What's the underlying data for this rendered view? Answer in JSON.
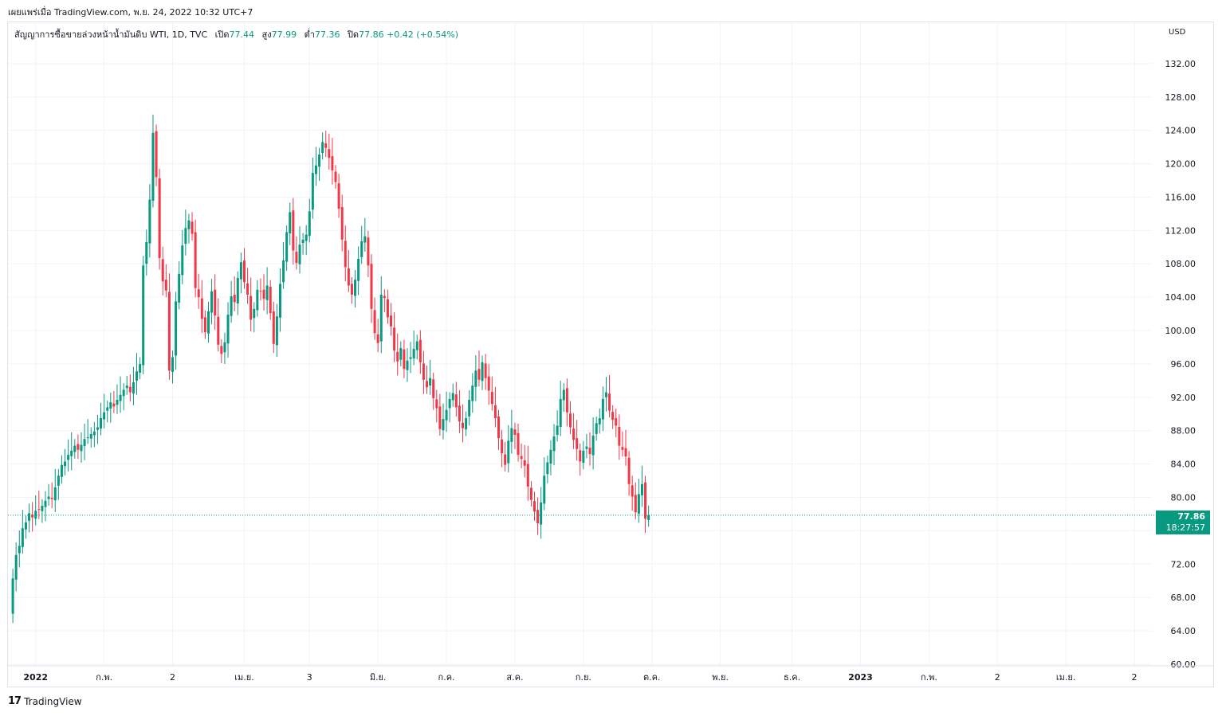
{
  "header": {
    "published": "เผยแพร่เมื่อ TradingView.com, พ.ย. 24, 2022 10:32 UTC+7"
  },
  "legend": {
    "symbol": "สัญญาการซื้อขายล่วงหน้าน้ำมันดิบ WTI, 1D, TVC",
    "open_label": "เปิด",
    "open": "77.44",
    "high_label": "สูง",
    "high": "77.99",
    "low_label": "ต่ำ",
    "low": "77.36",
    "close_label": "ปิด",
    "close": "77.86",
    "change": "+0.42 (+0.54%)"
  },
  "price_axis": {
    "currency": "USD",
    "last_price": "77.86",
    "countdown": "18:27:57"
  },
  "footer": {
    "brand_mark": "17",
    "brand": "TradingView"
  },
  "colors": {
    "up": "#089981",
    "down": "#f23645",
    "grid": "#f0f3fa",
    "axis_text": "#131722"
  },
  "chart_data": {
    "type": "candlestick",
    "title": "สัญญาการซื้อขายล่วงหน้าน้ำมันดิบ WTI",
    "interval": "1D",
    "ylim": [
      60,
      134
    ],
    "y_ticks": [
      60,
      64,
      68,
      72,
      76,
      80,
      84,
      88,
      92,
      96,
      100,
      104,
      108,
      112,
      116,
      120,
      124,
      128,
      132
    ],
    "x_tick_labels": [
      "2022",
      "ก.พ.",
      "2",
      "เม.ย.",
      "3",
      "มิ.ย.",
      "ก.ค.",
      "ส.ค.",
      "ก.ย.",
      "ต.ค.",
      "พ.ย.",
      "ธ.ค.",
      "2023",
      "ก.พ.",
      "2",
      "เม.ย.",
      "2"
    ],
    "x_tick_slots": [
      8,
      29,
      50,
      72,
      92,
      113,
      134,
      155,
      176,
      197,
      218,
      240,
      261,
      282,
      303,
      324,
      345
    ],
    "last_close": 77.86,
    "grid": true,
    "closes": [
      66.2,
      70.3,
      73.1,
      74.2,
      76.3,
      77.0,
      78.1,
      77.6,
      78.4,
      78.5,
      79.0,
      79.6,
      80.1,
      79.8,
      81.2,
      82.6,
      83.9,
      84.3,
      85.1,
      85.6,
      86.2,
      85.7,
      86.3,
      87.0,
      87.2,
      87.6,
      87.9,
      88.4,
      89.5,
      90.2,
      90.8,
      91.4,
      90.9,
      91.7,
      92.3,
      92.9,
      93.4,
      92.6,
      93.8,
      95.1,
      96.0,
      107.8,
      110.6,
      115.7,
      123.7,
      118.4,
      108.7,
      105.9,
      104.8,
      95.2,
      96.8,
      103.5,
      106.8,
      110.2,
      112.3,
      113.2,
      111.6,
      105.1,
      104.0,
      101.4,
      99.8,
      102.3,
      104.7,
      101.8,
      98.3,
      97.2,
      98.6,
      101.9,
      104.1,
      103.4,
      106.3,
      108.2,
      105.8,
      104.3,
      101.3,
      102.6,
      104.9,
      104.7,
      103.8,
      105.4,
      102.1,
      98.4,
      101.7,
      105.6,
      108.4,
      111.8,
      114.2,
      109.6,
      108.1,
      110.3,
      110.9,
      111.5,
      114.3,
      118.9,
      119.8,
      121.1,
      122.6,
      121.9,
      120.7,
      119.2,
      117.8,
      114.6,
      110.9,
      107.6,
      105.4,
      104.3,
      106.1,
      108.6,
      110.7,
      111.3,
      107.8,
      102.6,
      99.7,
      98.5,
      104.3,
      103.9,
      101.6,
      100.5,
      97.6,
      96.3,
      97.9,
      95.4,
      96.4,
      96.8,
      97.8,
      98.7,
      96.2,
      94.1,
      93.2,
      94.3,
      91.9,
      90.7,
      88.2,
      89.4,
      90.5,
      91.8,
      92.5,
      90.8,
      89.1,
      88.3,
      89.5,
      91.7,
      93.4,
      95.2,
      94.1,
      96.2,
      94.3,
      92.8,
      91.2,
      89.5,
      87.1,
      85.3,
      83.9,
      86.8,
      88.3,
      87.5,
      85.1,
      84.6,
      83.8,
      81.3,
      79.7,
      78.3,
      76.9,
      79.4,
      82.6,
      84.2,
      85.7,
      87.3,
      88.6,
      91.8,
      92.9,
      90.2,
      88.4,
      86.9,
      85.8,
      84.3,
      85.6,
      86.1,
      85.2,
      87.4,
      88.9,
      89.5,
      91.8,
      92.6,
      90.4,
      89.3,
      88.6,
      86.2,
      85.7,
      84.9,
      81.6,
      80.1,
      78.2,
      80.4,
      81.6,
      77.44,
      77.86
    ]
  }
}
